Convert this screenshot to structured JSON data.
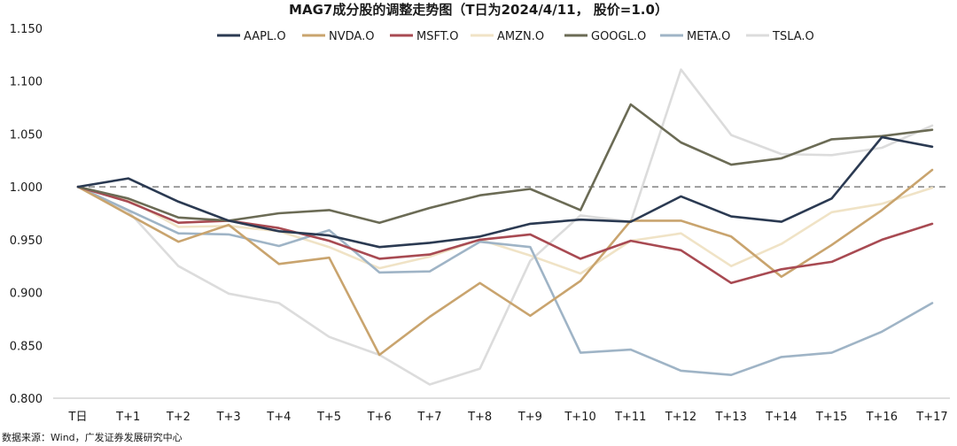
{
  "chart_data": {
    "type": "line",
    "title": "MAG7成分股的调整走势图（T日为2024/4/11， 股价=1.0）",
    "xlabel": "",
    "ylabel": "",
    "categories": [
      "T日",
      "T+1",
      "T+2",
      "T+3",
      "T+4",
      "T+5",
      "T+6",
      "T+7",
      "T+8",
      "T+9",
      "T+10",
      "T+11",
      "T+12",
      "T+13",
      "T+14",
      "T+15",
      "T+16",
      "T+17"
    ],
    "ylim": [
      0.8,
      1.15
    ],
    "yticks": [
      0.8,
      0.85,
      0.9,
      0.95,
      1.0,
      1.05,
      1.1,
      1.15
    ],
    "ytick_labels": [
      "0.800",
      "0.850",
      "0.900",
      "0.950",
      "1.000",
      "1.050",
      "1.100",
      "1.150"
    ],
    "reference_line": 1.0,
    "legend_position": "top",
    "series": [
      {
        "name": "AAPL.O",
        "color": "#2b3a52",
        "values": [
          1.0,
          1.008,
          0.986,
          0.968,
          0.958,
          0.954,
          0.943,
          0.947,
          0.953,
          0.965,
          0.969,
          0.967,
          0.991,
          0.972,
          0.967,
          0.989,
          1.047,
          1.038
        ]
      },
      {
        "name": "NVDA.O",
        "color": "#c9a46e",
        "values": [
          1.0,
          0.974,
          0.948,
          0.964,
          0.927,
          0.933,
          0.841,
          0.877,
          0.909,
          0.878,
          0.911,
          0.968,
          0.968,
          0.953,
          0.915,
          0.945,
          0.978,
          1.016
        ]
      },
      {
        "name": "MSFT.O",
        "color": "#a84a52",
        "values": [
          1.0,
          0.986,
          0.966,
          0.968,
          0.961,
          0.949,
          0.932,
          0.936,
          0.95,
          0.955,
          0.932,
          0.949,
          0.94,
          0.909,
          0.922,
          0.929,
          0.95,
          0.965
        ]
      },
      {
        "name": "AMZN.O",
        "color": "#f0e3c6",
        "values": [
          1.0,
          0.988,
          0.962,
          0.963,
          0.958,
          0.943,
          0.923,
          0.934,
          0.95,
          0.935,
          0.918,
          0.949,
          0.956,
          0.925,
          0.946,
          0.976,
          0.984,
          0.999
        ]
      },
      {
        "name": "GOOGL.O",
        "color": "#6b6b55",
        "values": [
          1.0,
          0.989,
          0.971,
          0.968,
          0.975,
          0.978,
          0.966,
          0.98,
          0.992,
          0.998,
          0.978,
          1.078,
          1.042,
          1.021,
          1.027,
          1.045,
          1.048,
          1.054
        ]
      },
      {
        "name": "META.O",
        "color": "#9fb4c6",
        "values": [
          1.0,
          0.978,
          0.956,
          0.955,
          0.944,
          0.959,
          0.919,
          0.92,
          0.948,
          0.943,
          0.843,
          0.846,
          0.826,
          0.822,
          0.839,
          0.843,
          0.863,
          0.89
        ]
      },
      {
        "name": "TSLA.O",
        "color": "#dcdcdc",
        "values": [
          1.0,
          0.977,
          0.925,
          0.899,
          0.89,
          0.858,
          0.841,
          0.813,
          0.828,
          0.93,
          0.973,
          0.967,
          1.111,
          1.049,
          1.031,
          1.03,
          1.037,
          1.058
        ]
      }
    ]
  },
  "source": "数据来源：Wind，广发证券发展研究中心"
}
